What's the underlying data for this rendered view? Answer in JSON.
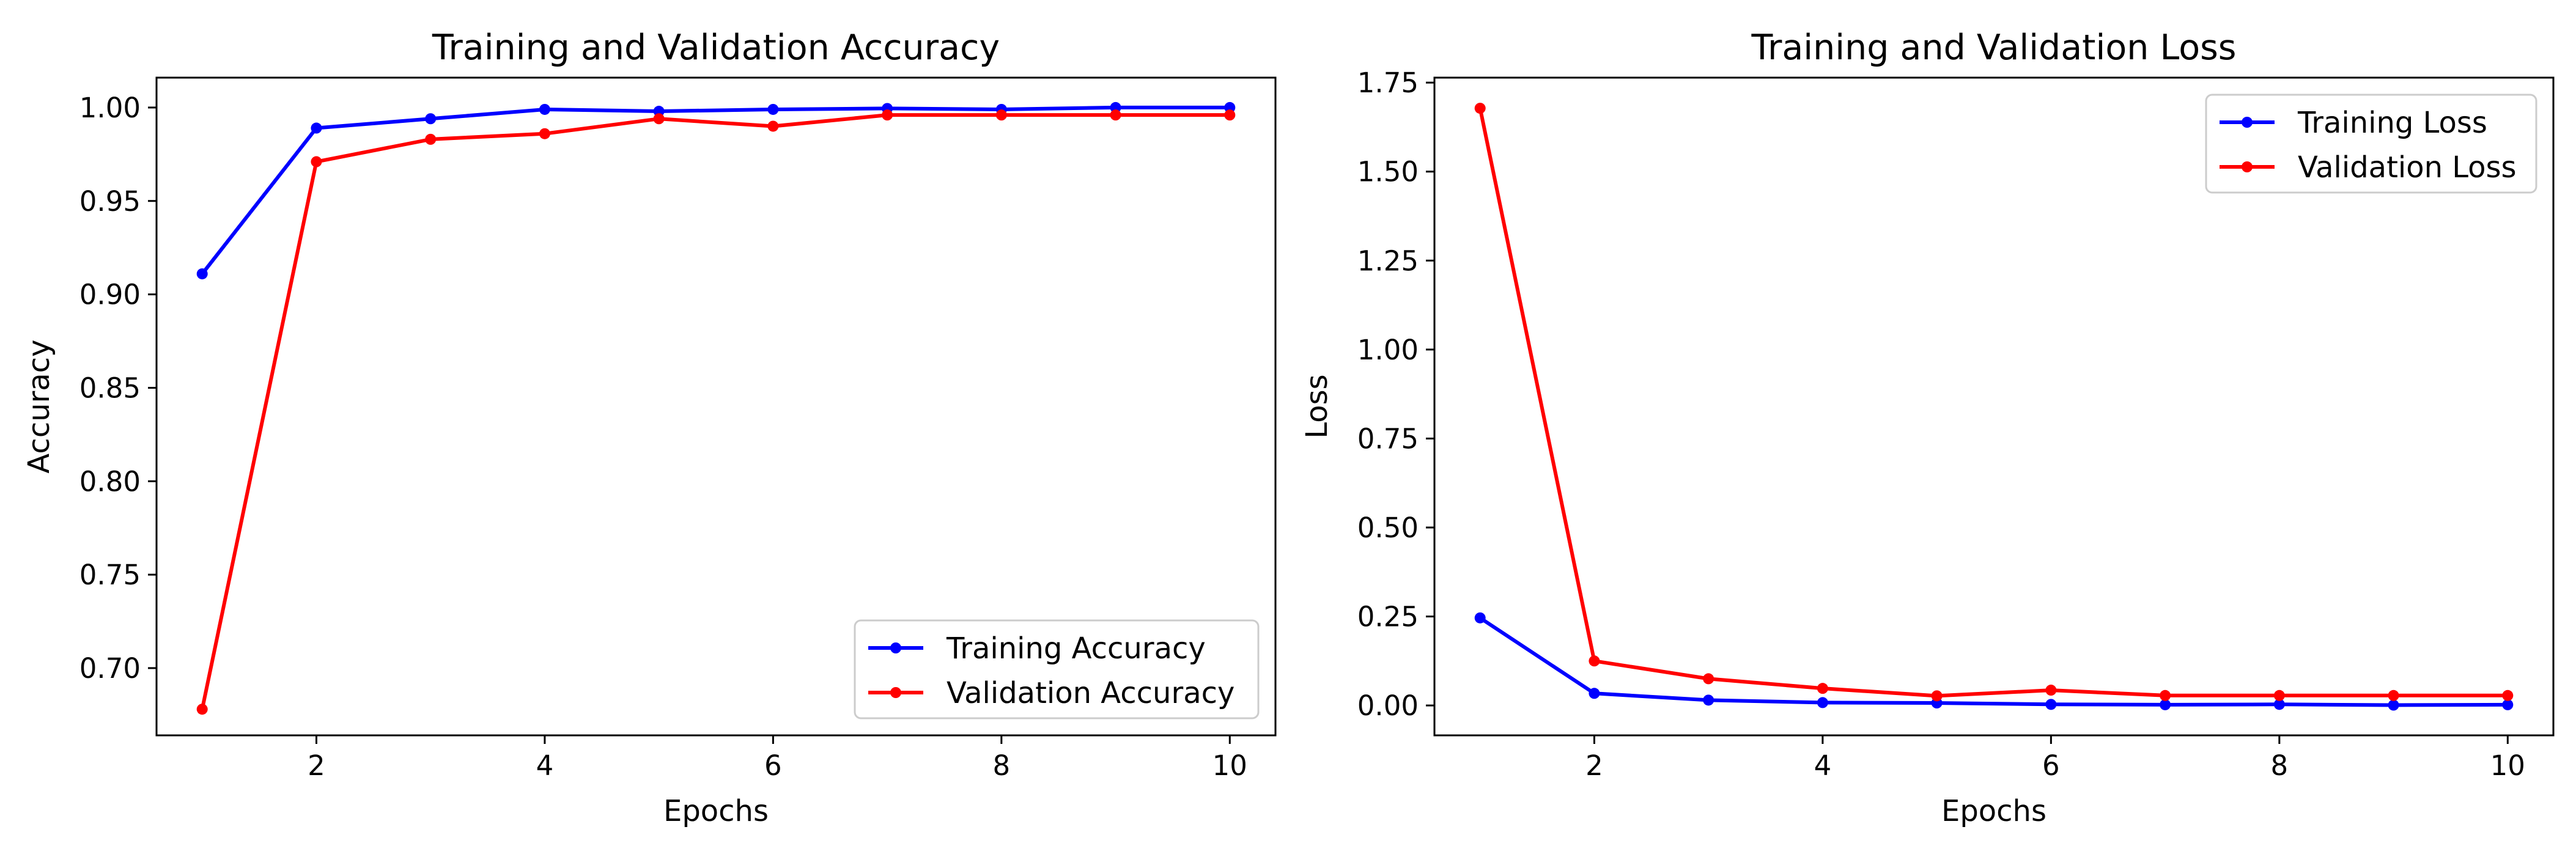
{
  "chart_data": [
    {
      "type": "line",
      "title": "Training and Validation Accuracy",
      "xlabel": "Epochs",
      "ylabel": "Accuracy",
      "xlim": [
        0.6,
        10.4
      ],
      "ylim": [
        0.664,
        1.016
      ],
      "xticks": [
        2,
        4,
        6,
        8,
        10
      ],
      "xtick_labels": [
        "2",
        "4",
        "6",
        "8",
        "10"
      ],
      "yticks": [
        0.7,
        0.75,
        0.8,
        0.85,
        0.9,
        0.95,
        1.0
      ],
      "ytick_labels": [
        "0.70",
        "0.75",
        "0.80",
        "0.85",
        "0.90",
        "0.95",
        "1.00"
      ],
      "grid": false,
      "legend_position": "bottom-right",
      "x": [
        1,
        2,
        3,
        4,
        5,
        6,
        7,
        8,
        9,
        10
      ],
      "series": [
        {
          "name": "Training Accuracy",
          "color": "#0000ff",
          "marker": "circle",
          "values": [
            0.911,
            0.989,
            0.994,
            0.999,
            0.998,
            0.999,
            0.9995,
            0.999,
            1.0,
            1.0
          ]
        },
        {
          "name": "Validation Accuracy",
          "color": "#ff0000",
          "marker": "circle",
          "values": [
            0.678,
            0.971,
            0.983,
            0.986,
            0.994,
            0.99,
            0.996,
            0.996,
            0.996,
            0.996
          ]
        }
      ]
    },
    {
      "type": "line",
      "title": "Training and Validation Loss",
      "xlabel": "Epochs",
      "ylabel": "Loss",
      "xlim": [
        0.6,
        10.4
      ],
      "ylim": [
        -0.084,
        1.764
      ],
      "xticks": [
        2,
        4,
        6,
        8,
        10
      ],
      "xtick_labels": [
        "2",
        "4",
        "6",
        "8",
        "10"
      ],
      "yticks": [
        0.0,
        0.25,
        0.5,
        0.75,
        1.0,
        1.25,
        1.5,
        1.75
      ],
      "ytick_labels": [
        "0.00",
        "0.25",
        "0.50",
        "0.75",
        "1.00",
        "1.25",
        "1.50",
        "1.75"
      ],
      "grid": false,
      "legend_position": "top-right",
      "x": [
        1,
        2,
        3,
        4,
        5,
        6,
        7,
        8,
        9,
        10
      ],
      "series": [
        {
          "name": "Training Loss",
          "color": "#0000ff",
          "marker": "circle",
          "values": [
            0.246,
            0.034,
            0.015,
            0.008,
            0.007,
            0.003,
            0.002,
            0.003,
            0.001,
            0.002
          ]
        },
        {
          "name": "Validation Loss",
          "color": "#ff0000",
          "marker": "circle",
          "values": [
            1.678,
            0.125,
            0.075,
            0.048,
            0.027,
            0.043,
            0.028,
            0.028,
            0.028,
            0.028
          ]
        }
      ]
    }
  ]
}
